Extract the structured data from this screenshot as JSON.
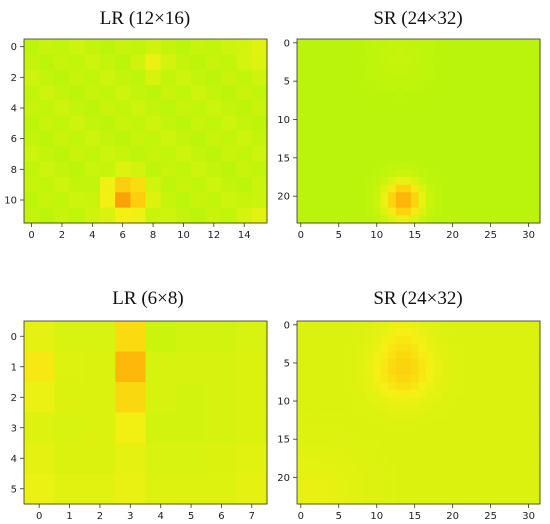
{
  "chart_data": [
    {
      "type": "heatmap",
      "title": "LR (12×16)",
      "rows": 12,
      "cols": 16,
      "xticks": [
        0,
        2,
        4,
        6,
        8,
        10,
        12,
        14
      ],
      "yticks": [
        0,
        2,
        4,
        6,
        8,
        10
      ],
      "smooth": false,
      "base_value": 0.4,
      "hotspots": [
        {
          "row": 9.8,
          "col": 6.2,
          "sigma": 0.9,
          "amp": 0.42
        },
        {
          "row": 1.2,
          "col": 8.0,
          "sigma": 0.5,
          "amp": 0.15
        },
        {
          "row": 0.3,
          "col": 15.0,
          "sigma": 0.7,
          "amp": 0.12
        },
        {
          "row": 10.8,
          "col": 15.0,
          "sigma": 0.6,
          "amp": 0.1
        }
      ]
    },
    {
      "type": "heatmap",
      "title": "SR (24×32)",
      "rows": 24,
      "cols": 32,
      "xticks": [
        0,
        5,
        10,
        15,
        20,
        25,
        30
      ],
      "yticks": [
        0,
        5,
        10,
        15,
        20
      ],
      "smooth": true,
      "base_value": 0.36,
      "hotspots": [
        {
          "row": 20.5,
          "col": 13.5,
          "sigma": 1.8,
          "amp": 0.42
        },
        {
          "row": 2.0,
          "col": 13.0,
          "sigma": 2.5,
          "amp": 0.05
        }
      ]
    },
    {
      "type": "heatmap",
      "title": "LR (6×8)",
      "rows": 6,
      "cols": 8,
      "xticks": [
        0,
        1,
        2,
        3,
        4,
        5,
        6,
        7
      ],
      "yticks": [
        0,
        1,
        2,
        3,
        4,
        5
      ],
      "smooth": false,
      "cells": [
        [
          0.5,
          0.46,
          0.46,
          0.62,
          0.42,
          0.44,
          0.44,
          0.46
        ],
        [
          0.58,
          0.48,
          0.47,
          0.74,
          0.45,
          0.45,
          0.45,
          0.47
        ],
        [
          0.52,
          0.47,
          0.47,
          0.63,
          0.45,
          0.44,
          0.45,
          0.47
        ],
        [
          0.48,
          0.46,
          0.47,
          0.54,
          0.44,
          0.44,
          0.45,
          0.47
        ],
        [
          0.5,
          0.47,
          0.47,
          0.5,
          0.46,
          0.46,
          0.47,
          0.49
        ],
        [
          0.52,
          0.49,
          0.49,
          0.51,
          0.48,
          0.48,
          0.48,
          0.5
        ]
      ]
    },
    {
      "type": "heatmap",
      "title": "SR (24×32)",
      "rows": 24,
      "cols": 32,
      "xticks": [
        0,
        5,
        10,
        15,
        20,
        25,
        30
      ],
      "yticks": [
        0,
        5,
        10,
        15,
        20
      ],
      "smooth": true,
      "base_value": 0.47,
      "hotspots": [
        {
          "row": 6.0,
          "col": 13.5,
          "sigma": 2.6,
          "amp": 0.18
        },
        {
          "row": 1.5,
          "col": 13.5,
          "sigma": 2.0,
          "amp": 0.06
        },
        {
          "row": 22.0,
          "col": 2.0,
          "sigma": 4.0,
          "amp": 0.04
        }
      ]
    }
  ]
}
